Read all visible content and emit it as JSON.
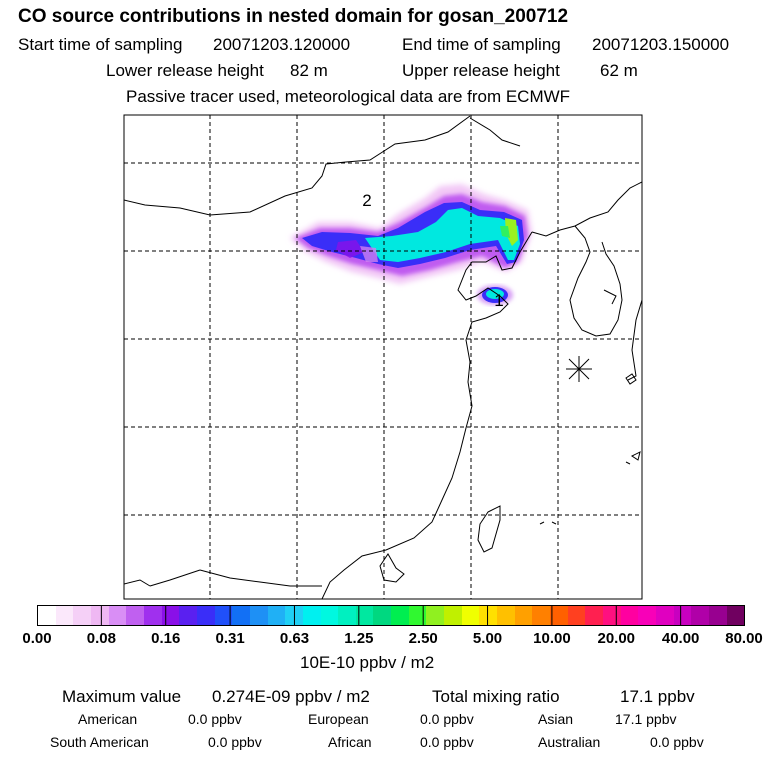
{
  "header": {
    "title": "CO  source contributions in nested domain for gosan_200712",
    "start_label": "Start time of sampling",
    "start_value": "20071203.120000",
    "end_label": "End time of sampling",
    "end_value": "20071203.150000",
    "lower_label": "Lower release height",
    "lower_value": "82 m",
    "upper_label": "Upper release height",
    "upper_value": "62 m",
    "note": "Passive tracer used, meteorological data are from ECMWF"
  },
  "map": {
    "labels": [
      "2",
      "1"
    ],
    "marker": "receptor-star"
  },
  "colorbar": {
    "ticks": [
      "0.00",
      "0.08",
      "0.16",
      "0.31",
      "0.63",
      "1.25",
      "2.50",
      "5.00",
      "10.00",
      "20.00",
      "40.00",
      "80.00"
    ],
    "unit": "10E-10 ppbv / m2",
    "colors": [
      "#ffffff",
      "#fbe8fb",
      "#f5d0f7",
      "#efb8f3",
      "#d98ef5",
      "#c060f0",
      "#a030ee",
      "#8a10e8",
      "#5a20f0",
      "#3a2ef8",
      "#2050fa",
      "#1270f5",
      "#1e90f5",
      "#20b0f5",
      "#20d0f5",
      "#00f0f0",
      "#00f8e0",
      "#00f0c0",
      "#00e8a0",
      "#00d880",
      "#00ee50",
      "#30f830",
      "#90f020",
      "#c0f000",
      "#f0ff00",
      "#ffe000",
      "#ffc000",
      "#ffa000",
      "#ff8000",
      "#ff6000",
      "#ff4020",
      "#ff2050",
      "#ff1080",
      "#ff00a0",
      "#f800b8",
      "#e000c0",
      "#c800c0",
      "#b000a8",
      "#980090",
      "#700060"
    ]
  },
  "stats": {
    "max_label": "Maximum value",
    "max_value": "0.274E-09 ppbv / m2",
    "total_label": "Total mixing ratio",
    "total_value": "17.1 ppbv",
    "regions": [
      {
        "name": "American",
        "value": "0.0 ppbv"
      },
      {
        "name": "European",
        "value": "0.0 ppbv"
      },
      {
        "name": "Asian",
        "value": "17.1 ppbv"
      },
      {
        "name": "South American",
        "value": "0.0 ppbv"
      },
      {
        "name": "African",
        "value": "0.0 ppbv"
      },
      {
        "name": "Australian",
        "value": "0.0 ppbv"
      }
    ]
  }
}
